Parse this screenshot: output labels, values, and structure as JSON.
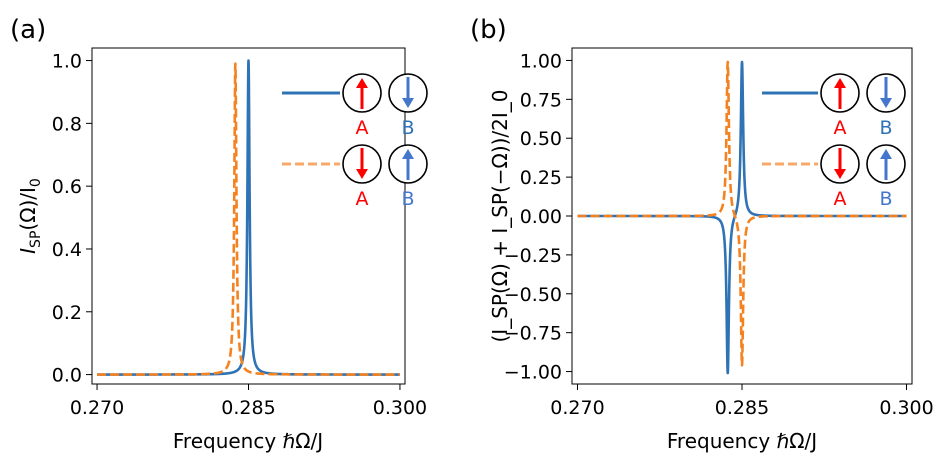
{
  "chart_data": [
    {
      "type": "line",
      "panel_label": "(a)",
      "xlabel": "Frequency ℏΩ/J",
      "ylabel": {
        "main": "I",
        "sub": "SP",
        "mid": "(Ω)/I",
        "sub2": "0"
      },
      "xlim": [
        0.2695,
        0.3005
      ],
      "ylim": [
        -0.03,
        1.04
      ],
      "xticks": [
        0.27,
        0.285,
        0.3
      ],
      "xtick_labels": [
        "0.270",
        "0.285",
        "0.300"
      ],
      "yticks": [
        0.0,
        0.2,
        0.4,
        0.6,
        0.8,
        1.0
      ],
      "ytick_labels": [
        "0.0",
        "0.2",
        "0.4",
        "0.6",
        "0.8",
        "1.0"
      ],
      "grid": false,
      "x_range": [
        0.27,
        0.3
      ],
      "series": [
        {
          "name": "A up, B down",
          "style": "solid",
          "color": "#2f73b5",
          "shape": "lorentzian",
          "center": 0.285,
          "width": 0.00013,
          "amplitude": 1.0
        },
        {
          "name": "A down, B up",
          "style": "dashed",
          "color": "#f58220",
          "shape": "lorentzian",
          "center": 0.2837,
          "width": 0.00013,
          "amplitude": 0.99
        }
      ],
      "legend": {
        "position": "top-right",
        "entries": [
          {
            "line": "solid",
            "color": "#2f73b5",
            "spin_A": "up",
            "spin_B": "down",
            "label_A": "A",
            "label_B": "B",
            "arrow_A_color": "#ff0000",
            "arrow_B_color": "#4477cc",
            "label_A_color": "#ff0000",
            "label_B_color": "#2f73b5"
          },
          {
            "line": "dashed",
            "color": "#f7a86a",
            "spin_A": "down",
            "spin_B": "up",
            "label_A": "A",
            "label_B": "B",
            "arrow_A_color": "#ff0000",
            "arrow_B_color": "#4477cc",
            "label_A_color": "#ff0000",
            "label_B_color": "#4477cc"
          }
        ]
      }
    },
    {
      "type": "line",
      "panel_label": "(b)",
      "xlabel": "Frequency ℏΩ/J",
      "ylabel": {
        "text": "(I_SP(Ω) + I_SP(−Ω))/2I_0"
      },
      "xlim": [
        0.2695,
        0.3005
      ],
      "ylim": [
        -1.08,
        1.08
      ],
      "xticks": [
        0.27,
        0.285,
        0.3
      ],
      "xtick_labels": [
        "0.270",
        "0.285",
        "0.300"
      ],
      "yticks": [
        -1.0,
        -0.75,
        -0.5,
        -0.25,
        0.0,
        0.25,
        0.5,
        0.75,
        1.0
      ],
      "ytick_labels": [
        "−1.00",
        "−0.75",
        "−0.50",
        "−0.25",
        "0.00",
        "0.25",
        "0.50",
        "0.75",
        "1.00"
      ],
      "grid": false,
      "x_range": [
        0.27,
        0.3
      ],
      "series": [
        {
          "name": "A up, B down",
          "style": "solid",
          "color": "#2f73b5",
          "shape": "antisymmetric",
          "peaks": [
            {
              "center": 0.285,
              "amplitude": 1.0
            },
            {
              "center": 0.2837,
              "amplitude": -1.02
            }
          ],
          "width": 0.00013
        },
        {
          "name": "A down, B up",
          "style": "dashed",
          "color": "#f58220",
          "shape": "antisymmetric",
          "peaks": [
            {
              "center": 0.2837,
              "amplitude": 1.0
            },
            {
              "center": 0.285,
              "amplitude": -0.97
            }
          ],
          "width": 0.00013
        }
      ],
      "legend": {
        "position": "top-right",
        "entries": [
          {
            "line": "solid",
            "color": "#2f73b5",
            "spin_A": "up",
            "spin_B": "down",
            "label_A": "A",
            "label_B": "B",
            "arrow_A_color": "#ff0000",
            "arrow_B_color": "#4477cc",
            "label_A_color": "#ff0000",
            "label_B_color": "#2f73b5"
          },
          {
            "line": "dashed",
            "color": "#f7a86a",
            "spin_A": "down",
            "spin_B": "up",
            "label_A": "A",
            "label_B": "B",
            "arrow_A_color": "#ff0000",
            "arrow_B_color": "#4477cc",
            "label_A_color": "#ff0000",
            "label_B_color": "#4477cc"
          }
        ]
      }
    }
  ]
}
